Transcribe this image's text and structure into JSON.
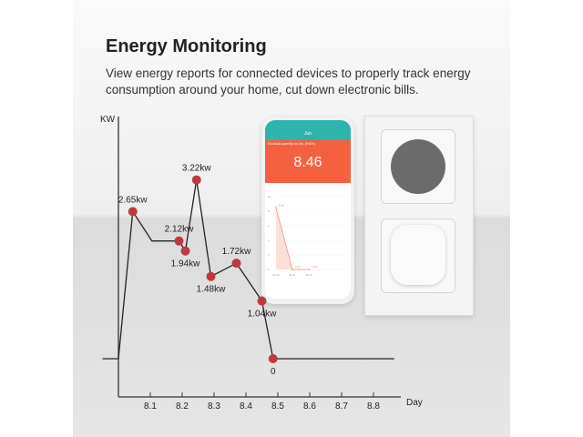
{
  "header": {
    "title": "Energy Monitoring",
    "subtitle": "View energy reports for connected devices to properly track energy consumption around your home, cut down electronic bills."
  },
  "phone": {
    "nav_title": "Jun",
    "summary_label": "Electrical quantity for Jun. (KW.h)",
    "summary_value": "8.46",
    "mini_chart": {
      "x": [
        "06-10",
        "06-11",
        "06-12"
      ],
      "values": [
        8.46,
        0.0,
        0.0
      ],
      "value_labels": [
        "8.46",
        "0.00",
        "0.00"
      ],
      "y_ticks": [
        "0",
        "2",
        "4",
        "6",
        "8",
        "10"
      ]
    },
    "accent": "#f5603e",
    "header_color": "#2fb3ad"
  },
  "chart_data": {
    "type": "line",
    "ylabel": "KW",
    "xlabel": "Day",
    "x_ticks": [
      "8.1",
      "8.2",
      "8.3",
      "8.4",
      "8.5",
      "8.6",
      "8.7",
      "8.8"
    ],
    "xlim": [
      7.95,
      8.9
    ],
    "ylim": [
      0,
      3.5
    ],
    "series": [
      {
        "points": [
          [
            7.95,
            0
          ],
          [
            8.0,
            0
          ],
          [
            8.045,
            2.65
          ],
          [
            8.105,
            2.12
          ],
          [
            8.19,
            2.12
          ],
          [
            8.21,
            1.94
          ],
          [
            8.245,
            3.22
          ],
          [
            8.29,
            1.48
          ],
          [
            8.37,
            1.72
          ],
          [
            8.45,
            1.04
          ],
          [
            8.485,
            0
          ],
          [
            8.865,
            0
          ]
        ]
      }
    ],
    "markers": [
      {
        "x": 8.045,
        "y": 2.65,
        "label": "2.65kw",
        "pos": "above"
      },
      {
        "x": 8.19,
        "y": 2.12,
        "label": "2.12kw",
        "pos": "above"
      },
      {
        "x": 8.21,
        "y": 1.94,
        "label": "1.94kw",
        "pos": "below"
      },
      {
        "x": 8.245,
        "y": 3.22,
        "label": "3.22kw",
        "pos": "above"
      },
      {
        "x": 8.29,
        "y": 1.48,
        "label": "1.48kw",
        "pos": "below"
      },
      {
        "x": 8.37,
        "y": 1.72,
        "label": "1.72kw",
        "pos": "above"
      },
      {
        "x": 8.45,
        "y": 1.04,
        "label": "1.04kw",
        "pos": "below"
      },
      {
        "x": 8.485,
        "y": 0,
        "label": "0",
        "pos": "below"
      }
    ],
    "line_color": "#222222",
    "marker_color": "#c0393f",
    "grid": false
  }
}
